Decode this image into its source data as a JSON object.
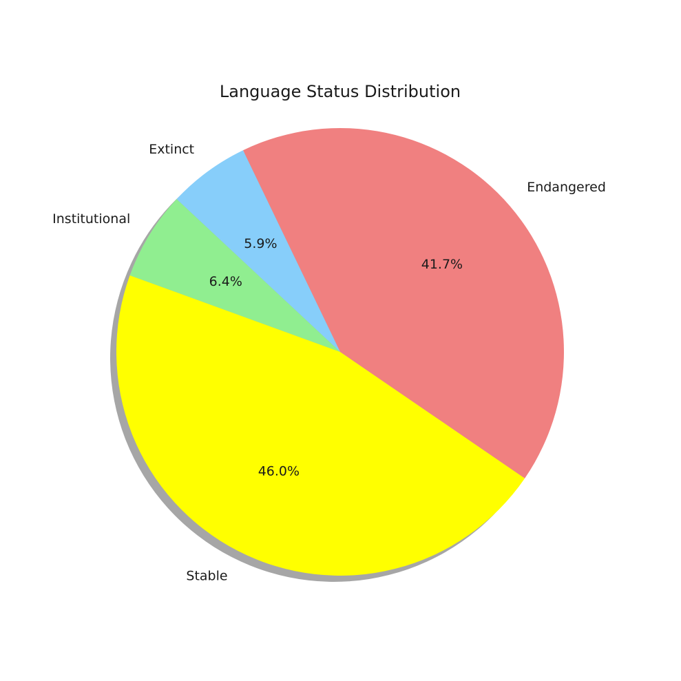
{
  "chart_data": {
    "type": "pie",
    "title": "Language Status Distribution",
    "start_angle_deg": 160,
    "direction": "counterclockwise",
    "shadow": true,
    "slices": [
      {
        "label": "Stable",
        "value": 46.0,
        "pct_text": "46.0%",
        "color": "#ffff00"
      },
      {
        "label": "Endangered",
        "value": 41.7,
        "pct_text": "41.7%",
        "color": "#f08080"
      },
      {
        "label": "Extinct",
        "value": 5.9,
        "pct_text": "5.9%",
        "color": "#87cefa"
      },
      {
        "label": "Institutional",
        "value": 6.4,
        "pct_text": "6.4%",
        "color": "#90ee90"
      }
    ]
  }
}
